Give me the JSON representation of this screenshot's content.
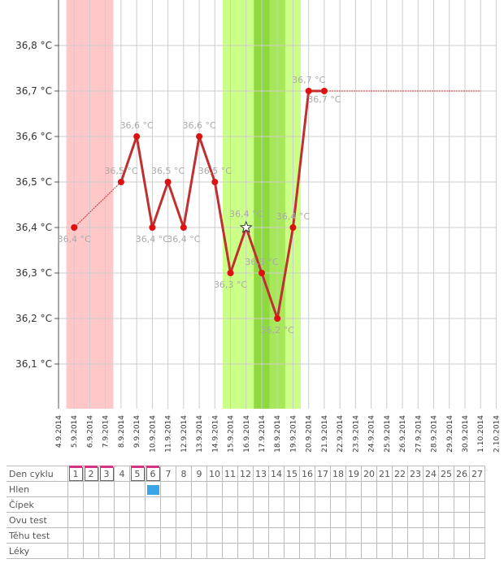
{
  "chart_data": {
    "type": "line",
    "title": "",
    "xlabel": "",
    "ylabel": "",
    "ylim": [
      36.0,
      36.9
    ],
    "yticks": [
      36.1,
      36.2,
      36.3,
      36.4,
      36.5,
      36.6,
      36.7,
      36.8
    ],
    "ytick_labels": [
      "36,1 °C",
      "36,2 °C",
      "36,3 °C",
      "36,4 °C",
      "36,5 °C",
      "36,6 °C",
      "36,7 °C",
      "36,8 °C"
    ],
    "x_labels": [
      "4.9.2014",
      "5.9.2014",
      "6.9.2014",
      "7.9.2014",
      "8.9.2014",
      "9.9.2014",
      "10.9.2014",
      "11.9.2014",
      "12.9.2014",
      "13.9.2014",
      "14.9.2014",
      "15.9.2014",
      "16.9.2014",
      "17.9.2014",
      "18.9.2014",
      "19.9.2014",
      "20.9.2014",
      "21.9.2014",
      "22.9.2014",
      "23.9.2014",
      "24.9.2014",
      "25.9.2014",
      "26.9.2014",
      "27.9.2014",
      "28.9.2014",
      "29.9.2014",
      "30.9.2014",
      "1.10.2014",
      "2.10.2014"
    ],
    "points": [
      {
        "x": "5.9.2014",
        "y": 36.4,
        "label": "36,4 °C"
      },
      {
        "x": "8.9.2014",
        "y": 36.5,
        "label": "36,5 °C"
      },
      {
        "x": "9.9.2014",
        "y": 36.6,
        "label": "36,6 °C"
      },
      {
        "x": "10.9.2014",
        "y": 36.4,
        "label": "36,4 °C"
      },
      {
        "x": "11.9.2014",
        "y": 36.5,
        "label": "36,5 °C"
      },
      {
        "x": "12.9.2014",
        "y": 36.4,
        "label": "36,4 °C"
      },
      {
        "x": "13.9.2014",
        "y": 36.6,
        "label": "36,6 °C"
      },
      {
        "x": "14.9.2014",
        "y": 36.5,
        "label": "36,5 °C"
      },
      {
        "x": "15.9.2014",
        "y": 36.3,
        "label": "36,3 °C"
      },
      {
        "x": "16.9.2014",
        "y": 36.4,
        "label": "36,4 °C",
        "marker": "star"
      },
      {
        "x": "17.9.2014",
        "y": 36.3,
        "label": "36,3 °C"
      },
      {
        "x": "18.9.2014",
        "y": 36.2,
        "label": "36,2 °C"
      },
      {
        "x": "19.9.2014",
        "y": 36.4,
        "label": "36,4 °C"
      },
      {
        "x": "20.9.2014",
        "y": 36.7,
        "label": "36,7 °C"
      },
      {
        "x": "21.9.2014",
        "y": 36.7,
        "label": "36,7 °C"
      }
    ],
    "projection_to": "1.10.2014",
    "menstruation_period": {
      "from": "4.9.2014",
      "to": "7.9.2014",
      "color": "#ffc7c7"
    },
    "fertile_window": {
      "from": "14.9.2014",
      "to": "19.9.2014",
      "color": "#ccff88"
    },
    "fertile_peak": {
      "from": "16.9.2014",
      "to": "18.9.2014",
      "color": "#a6e85a"
    },
    "fertile_peak_core": {
      "from": "16.9.2014",
      "to": "17.9.2014",
      "color": "#8ed840"
    },
    "colors": {
      "line": "#c03030",
      "point": "#dd1111",
      "projection": "#c03030",
      "grid": "#cccccc"
    },
    "grid": true
  },
  "table": {
    "rows": [
      {
        "label": "Den cyklu"
      },
      {
        "label": "Hlen"
      },
      {
        "label": "Čípek"
      },
      {
        "label": "Ovu test"
      },
      {
        "label": "Těhu test"
      },
      {
        "label": "Léky"
      }
    ],
    "cycle_days": [
      "1",
      "2",
      "3",
      "4",
      "5",
      "6",
      "7",
      "8",
      "9",
      "10",
      "11",
      "12",
      "13",
      "14",
      "15",
      "16",
      "17",
      "18",
      "19",
      "20",
      "21",
      "22",
      "23",
      "24",
      "25",
      "26",
      "27"
    ],
    "menstruation_days": [
      1,
      2,
      3,
      5,
      6
    ],
    "hlen_marked_days": [
      6
    ],
    "colors": {
      "marker": "#d63384",
      "hlen": "#3aa6e8"
    }
  }
}
